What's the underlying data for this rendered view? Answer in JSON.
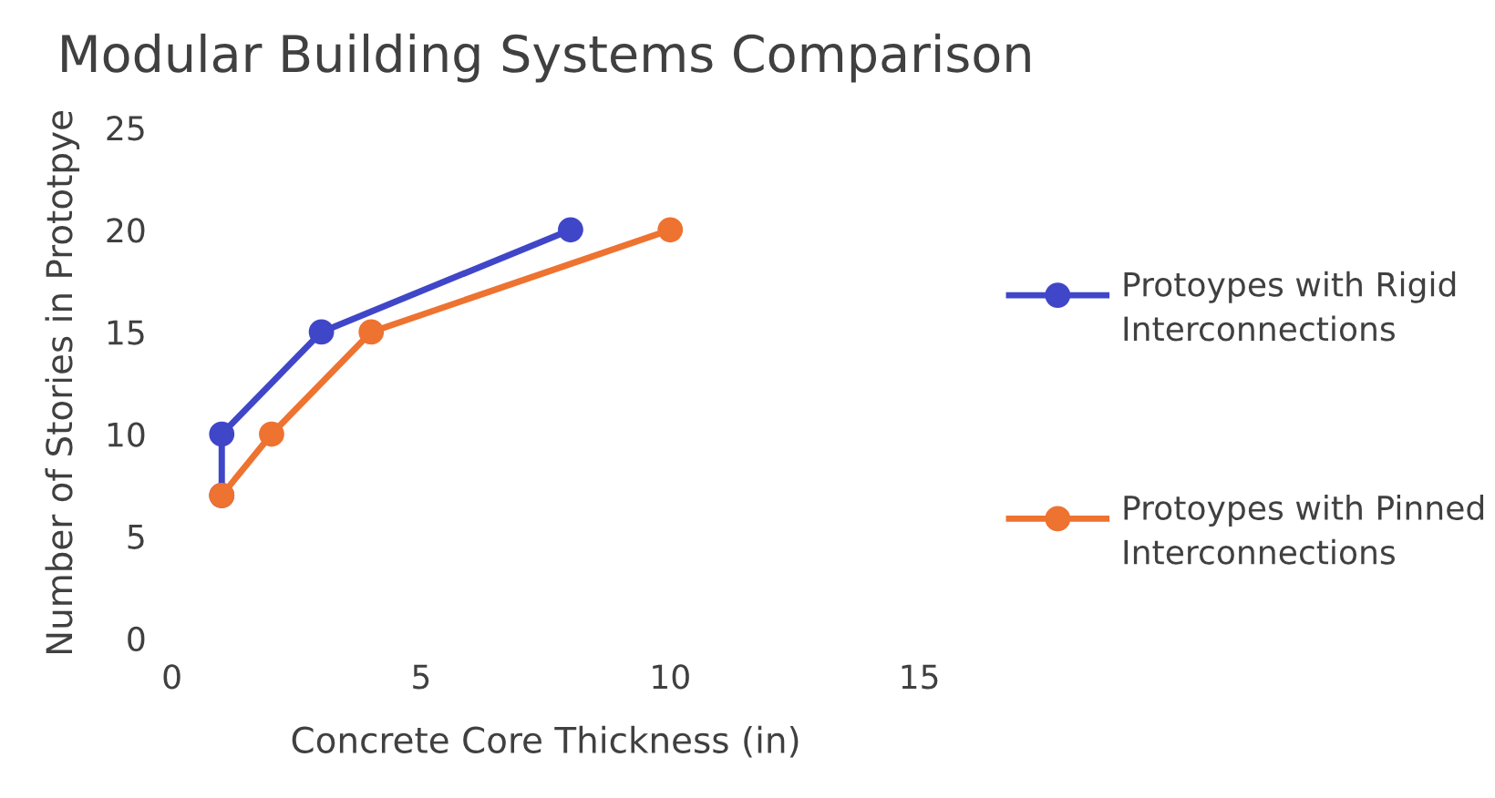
{
  "chart_data": {
    "type": "line",
    "title": "Modular Building Systems Comparison",
    "xlabel": "Concrete Core Thickness (in)",
    "ylabel": "Number of Stories in Prototpye",
    "series": [
      {
        "name": "Protoypes with Rigid Interconnections",
        "color": "#4046c8",
        "x": [
          1,
          1,
          3,
          8
        ],
        "values": [
          7,
          10,
          15,
          20
        ]
      },
      {
        "name": "Protoypes with Pinned Interconnections",
        "color": "#ee7230",
        "x": [
          1,
          2,
          4,
          10
        ],
        "values": [
          7,
          10,
          15,
          20
        ]
      }
    ],
    "xlim": [
      0,
      15
    ],
    "xticks": [
      0,
      5,
      10,
      15
    ],
    "ylim": [
      0,
      25
    ],
    "yticks": [
      0,
      5,
      10,
      15,
      20,
      25
    ],
    "marker": "circle",
    "line_style": "solid",
    "grid": false,
    "legend": "right"
  }
}
